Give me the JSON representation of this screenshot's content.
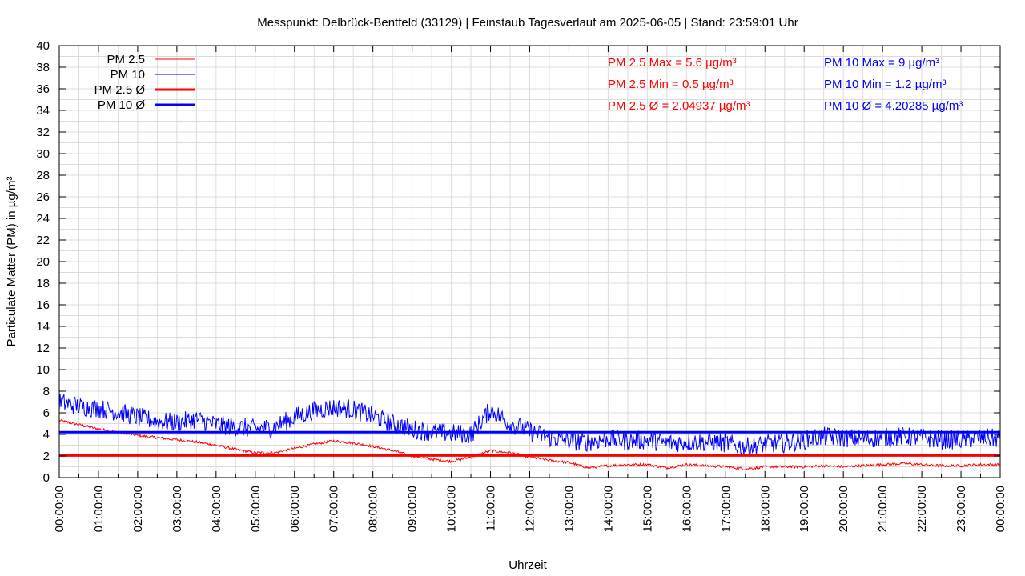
{
  "chart_data": {
    "type": "line",
    "title": "Messpunkt: Delbrück-Bentfeld (33129) | Feinstaub Tagesverlauf am 2025-06-05 | Stand: 23:59:01 Uhr",
    "xlabel": "Uhrzeit",
    "ylabel": "Particulate Matter (PM) in µg/m³",
    "ylim": [
      0,
      40
    ],
    "xlim": [
      "00:00:00",
      "24:00:00"
    ],
    "x_ticks": [
      "00:00:00",
      "01:00:00",
      "02:00:00",
      "03:00:00",
      "04:00:00",
      "05:00:00",
      "06:00:00",
      "07:00:00",
      "08:00:00",
      "09:00:00",
      "10:00:00",
      "11:00:00",
      "12:00:00",
      "13:00:00",
      "14:00:00",
      "15:00:00",
      "16:00:00",
      "17:00:00",
      "18:00:00",
      "19:00:00",
      "20:00:00",
      "21:00:00",
      "22:00:00",
      "23:00:00",
      "00:00:00"
    ],
    "y_ticks": [
      0,
      2,
      4,
      6,
      8,
      10,
      12,
      14,
      16,
      18,
      20,
      22,
      24,
      26,
      28,
      30,
      32,
      34,
      36,
      38,
      40
    ],
    "grid": true,
    "legend_position": "top-left",
    "colors": {
      "pm25": "#ff0000",
      "pm10": "#0000ff"
    },
    "legend": [
      "PM 2.5",
      "PM 10",
      "PM 2.5 Ø",
      "PM 10 Ø"
    ],
    "series": [
      {
        "name": "PM 2.5",
        "color": "#ff0000",
        "x_hours": [
          0,
          0.5,
          1,
          1.5,
          2,
          2.5,
          3,
          3.5,
          4,
          4.5,
          5,
          5.5,
          6,
          6.5,
          7,
          7.5,
          8,
          8.5,
          9,
          9.5,
          10,
          10.5,
          11,
          11.5,
          12,
          12.5,
          13,
          13.5,
          14,
          14.5,
          15,
          15.5,
          16,
          16.5,
          17,
          17.5,
          18,
          18.5,
          19,
          19.5,
          20,
          20.5,
          21,
          21.5,
          22,
          22.5,
          23,
          23.5,
          24
        ],
        "values": [
          5.3,
          4.9,
          4.5,
          4.2,
          3.9,
          3.7,
          3.5,
          3.3,
          3.0,
          2.6,
          2.3,
          2.3,
          2.7,
          3.1,
          3.4,
          3.2,
          2.9,
          2.5,
          2.0,
          1.7,
          1.5,
          1.9,
          2.5,
          2.3,
          1.9,
          1.6,
          1.4,
          0.9,
          1.1,
          1.2,
          1.2,
          0.9,
          1.2,
          1.1,
          1.0,
          0.8,
          1.0,
          1.0,
          1.0,
          1.1,
          1.0,
          1.1,
          1.2,
          1.3,
          1.2,
          1.1,
          1.1,
          1.2,
          1.2
        ]
      },
      {
        "name": "PM 10",
        "color": "#0000ff",
        "x_hours": [
          0,
          0.5,
          1,
          1.5,
          2,
          2.5,
          3,
          3.5,
          4,
          4.5,
          5,
          5.5,
          6,
          6.5,
          7,
          7.5,
          8,
          8.5,
          9,
          9.5,
          10,
          10.5,
          11,
          11.5,
          12,
          12.5,
          13,
          13.5,
          14,
          14.5,
          15,
          15.5,
          16,
          16.5,
          17,
          17.5,
          18,
          18.5,
          19,
          19.5,
          20,
          20.5,
          21,
          21.5,
          22,
          22.5,
          23,
          23.5,
          24
        ],
        "values": [
          7.0,
          6.6,
          6.4,
          6.1,
          5.6,
          5.2,
          5.1,
          5.4,
          4.9,
          4.7,
          4.5,
          4.7,
          5.6,
          6.2,
          6.5,
          6.3,
          5.7,
          5.0,
          4.5,
          4.2,
          4.1,
          4.0,
          6.3,
          5.0,
          4.3,
          3.7,
          3.4,
          3.3,
          3.6,
          3.4,
          3.5,
          3.2,
          3.3,
          3.3,
          3.2,
          2.8,
          3.1,
          3.2,
          3.5,
          3.8,
          3.7,
          3.6,
          3.7,
          3.8,
          3.7,
          3.5,
          3.5,
          3.7,
          3.6
        ]
      }
    ],
    "averages": [
      {
        "name": "PM 2.5 Ø",
        "value": 2.04937,
        "color": "#ff0000"
      },
      {
        "name": "PM 10 Ø",
        "value": 4.20285,
        "color": "#0000ff"
      }
    ],
    "annotations": {
      "pm25": [
        "PM 2.5 Max = 5.6 µg/m³",
        "PM 2.5 Min = 0.5 µg/m³",
        "PM 2.5 Ø = 2.04937 µg/m³"
      ],
      "pm10": [
        "PM 10 Max = 9 µg/m³",
        "PM 10 Min = 1.2 µg/m³",
        "PM 10 Ø = 4.20285 µg/m³"
      ]
    }
  }
}
